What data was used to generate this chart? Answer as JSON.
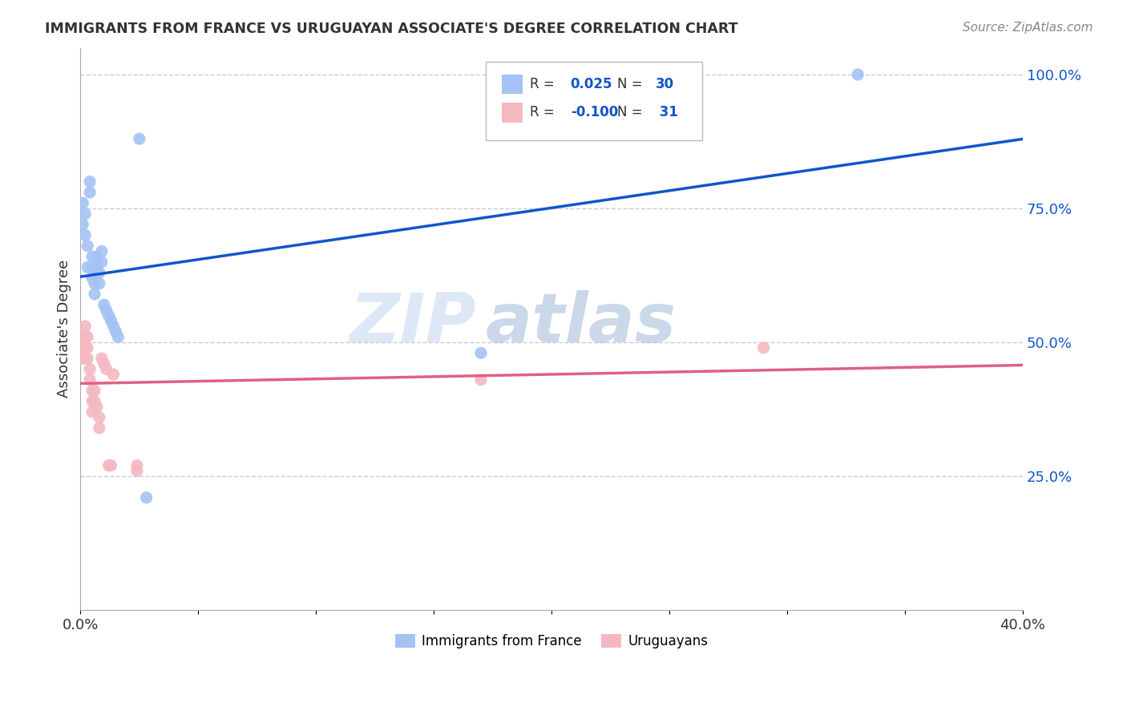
{
  "title": "IMMIGRANTS FROM FRANCE VS URUGUAYAN ASSOCIATE'S DEGREE CORRELATION CHART",
  "source": "Source: ZipAtlas.com",
  "ylabel_label": "Associate's Degree",
  "xlim": [
    0.0,
    0.4
  ],
  "ylim": [
    0.0,
    1.05
  ],
  "blue_color": "#a4c2f4",
  "pink_color": "#f4b8c1",
  "line_blue": "#1155cc",
  "line_pink": "#e06080",
  "legend_r_blue": "0.025",
  "legend_n_blue": "30",
  "legend_r_pink": "-0.100",
  "legend_n_pink": "31",
  "blue_x": [
    0.001,
    0.001,
    0.002,
    0.002,
    0.003,
    0.003,
    0.004,
    0.004,
    0.005,
    0.005,
    0.005,
    0.006,
    0.006,
    0.007,
    0.007,
    0.008,
    0.008,
    0.009,
    0.009,
    0.01,
    0.011,
    0.012,
    0.013,
    0.014,
    0.015,
    0.016,
    0.025,
    0.028,
    0.17,
    0.33
  ],
  "blue_y": [
    0.76,
    0.72,
    0.74,
    0.7,
    0.68,
    0.64,
    0.8,
    0.78,
    0.66,
    0.64,
    0.62,
    0.61,
    0.59,
    0.66,
    0.64,
    0.63,
    0.61,
    0.67,
    0.65,
    0.57,
    0.56,
    0.55,
    0.54,
    0.53,
    0.52,
    0.51,
    0.88,
    0.21,
    0.48,
    1.0
  ],
  "pink_x": [
    0.001,
    0.001,
    0.001,
    0.001,
    0.002,
    0.002,
    0.002,
    0.002,
    0.003,
    0.003,
    0.003,
    0.004,
    0.004,
    0.005,
    0.005,
    0.005,
    0.006,
    0.006,
    0.007,
    0.008,
    0.008,
    0.009,
    0.01,
    0.011,
    0.012,
    0.013,
    0.014,
    0.024,
    0.024,
    0.17,
    0.29
  ],
  "pink_y": [
    0.51,
    0.5,
    0.48,
    0.47,
    0.53,
    0.51,
    0.49,
    0.47,
    0.51,
    0.49,
    0.47,
    0.45,
    0.43,
    0.41,
    0.39,
    0.37,
    0.41,
    0.39,
    0.38,
    0.36,
    0.34,
    0.47,
    0.46,
    0.45,
    0.27,
    0.27,
    0.44,
    0.27,
    0.26,
    0.43,
    0.49
  ],
  "watermark_zip": "ZIP",
  "watermark_atlas": "atlas",
  "background_color": "#ffffff",
  "grid_color": "#cccccc",
  "label_color_blue": "#1155cc",
  "label_color_dark": "#333333"
}
